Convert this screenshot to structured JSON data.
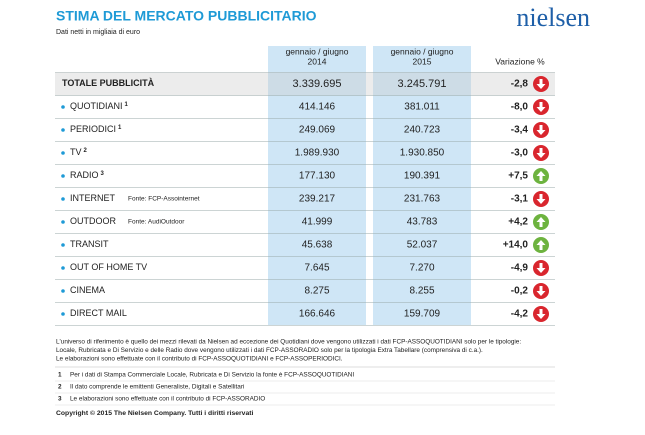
{
  "header": {
    "title": "STIMA DEL MERCATO PUBBLICITARIO",
    "subtitle": "Dati netti in migliaia di euro",
    "logo": "nielsen"
  },
  "table": {
    "columns": [
      {
        "period": "gennaio / giugno",
        "year": "2014"
      },
      {
        "period": "gennaio / giugno",
        "year": "2015"
      }
    ],
    "variation_header": "Variazione %",
    "total": {
      "label": "TOTALE PUBBLICITÀ",
      "v2014": "3.339.695",
      "v2015": "3.245.791",
      "variation": "-2,8"
    },
    "rows": [
      {
        "label": "QUOTIDIANI",
        "sup": "1",
        "v2014": "414.146",
        "v2015": "381.011",
        "variation": "-8,0"
      },
      {
        "label": "PERIODICI",
        "sup": "1",
        "v2014": "249.069",
        "v2015": "240.723",
        "variation": "-3,4"
      },
      {
        "label": "TV",
        "sup": "2",
        "v2014": "1.989.930",
        "v2015": "1.930.850",
        "variation": "-3,0"
      },
      {
        "label": "RADIO",
        "sup": "3",
        "v2014": "177.130",
        "v2015": "190.391",
        "variation": "+7,5"
      },
      {
        "label": "INTERNET",
        "source": "Fonte: FCP-Assointernet",
        "v2014": "239.217",
        "v2015": "231.763",
        "variation": "-3,1"
      },
      {
        "label": "OUTDOOR",
        "source": "Fonte: AudiOutdoor",
        "v2014": "41.999",
        "v2015": "43.783",
        "variation": "+4,2"
      },
      {
        "label": "TRANSIT",
        "v2014": "45.638",
        "v2015": "52.037",
        "variation": "+14,0"
      },
      {
        "label": "OUT OF HOME TV",
        "v2014": "7.645",
        "v2015": "7.270",
        "variation": "-4,9"
      },
      {
        "label": "CINEMA",
        "v2014": "8.275",
        "v2015": "8.255",
        "variation": "-0,2"
      },
      {
        "label": "DIRECT MAIL",
        "v2014": "166.646",
        "v2015": "159.709",
        "variation": "-4,2"
      }
    ]
  },
  "footer": {
    "paragraph": [
      "L'universo di riferimento è quello dei mezzi rilevati da Nielsen ad eccezione dei Quotidiani dove vengono utilizzati i dati FCP-ASSOQUOTIDIANI solo per le tipologie:",
      "Locale, Rubricata e Di Servizio e delle Radio dove vengono utilizzati i dati FCP-ASSORADIO solo per la tipologia Extra Tabellare (comprensiva di c.a.).",
      "Le elaborazioni sono effettuate con il contributo di FCP-ASSOQUOTIDIANI e FCP-ASSOPERIODICI."
    ],
    "notes": [
      {
        "marker": "1",
        "text": "Per i dati di Stampa Commerciale Locale, Rubricata e Di Servizio la fonte è FCP-ASSOQUOTIDIANI"
      },
      {
        "marker": "2",
        "text": "Il dato comprende le emittenti Generaliste, Digitali e Satellitari"
      },
      {
        "marker": "3",
        "text": "Le elaborazioni sono effettuate con il contributo di FCP-ASSORADIO"
      }
    ],
    "copyright": "Copyright © 2015 The Nielsen Company. Tutti i diritti riservati"
  }
}
